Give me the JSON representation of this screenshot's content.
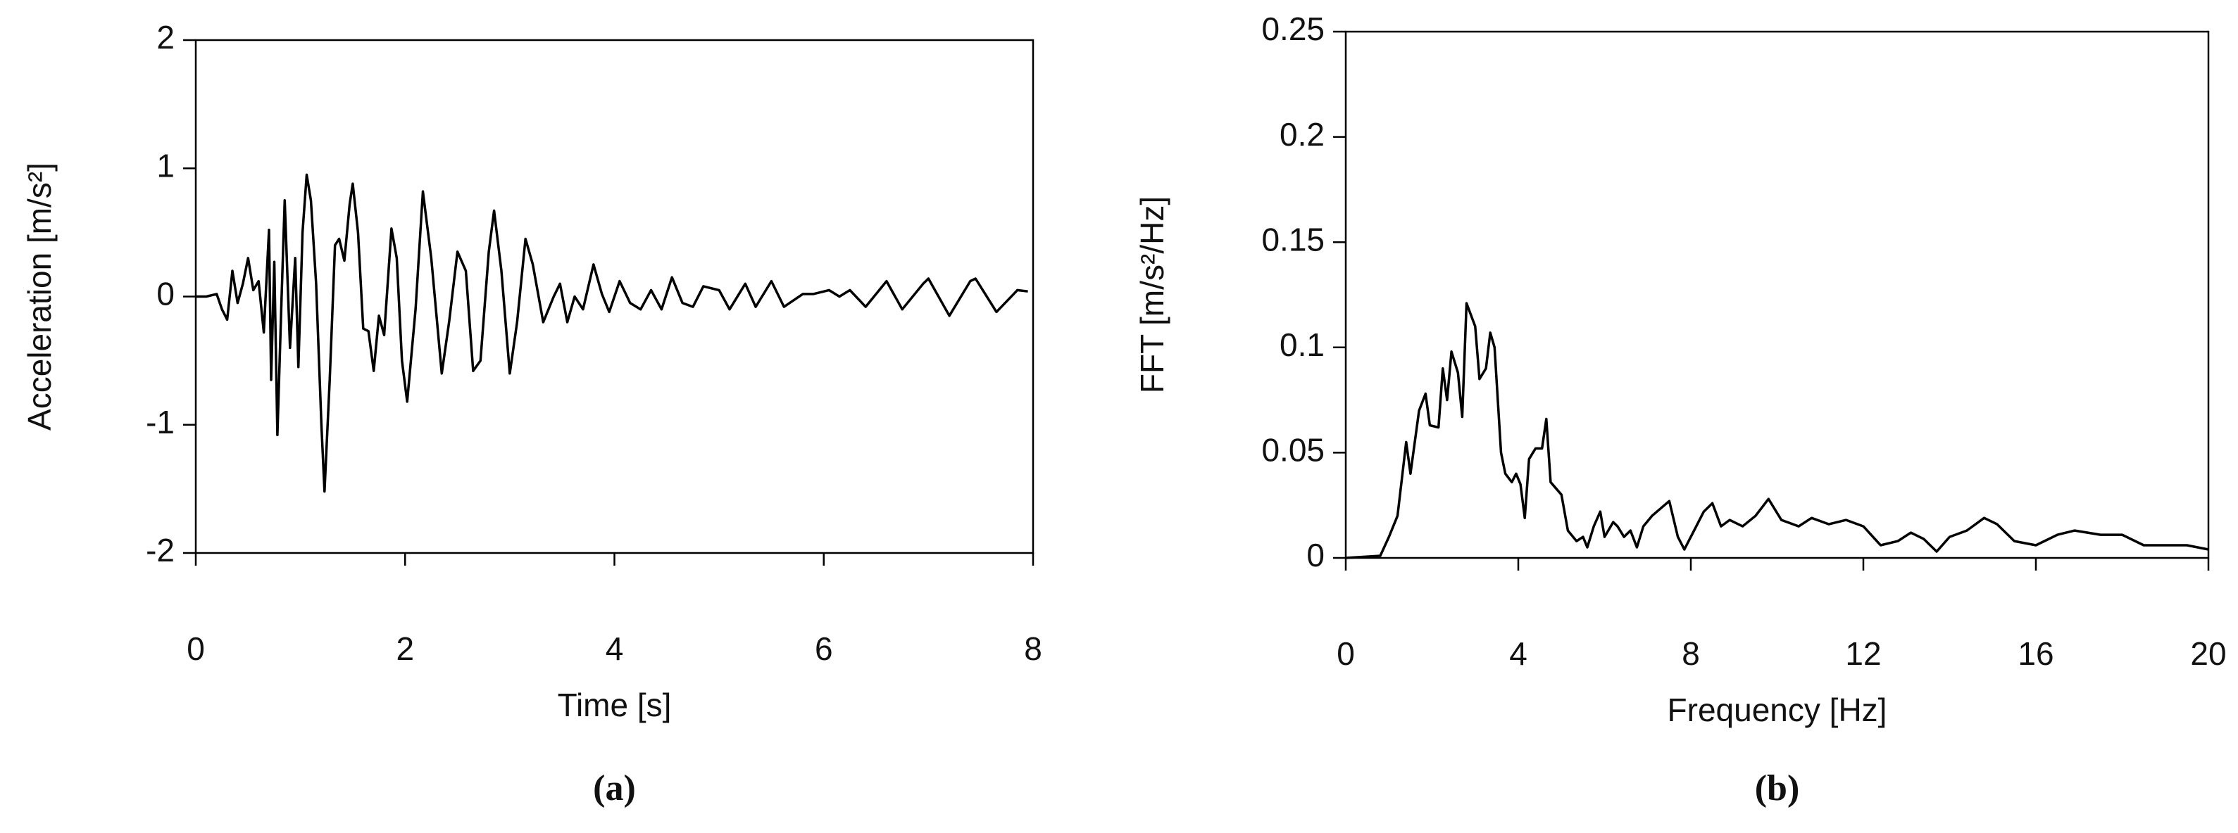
{
  "chart_data": [
    {
      "type": "line",
      "caption": "(a)",
      "xlabel": "Time [s]",
      "ylabel": "Acceleration [m/s²]",
      "color": "#000000",
      "xlim": [
        0,
        8
      ],
      "ylim": [
        -2,
        2
      ],
      "xticks": [
        0,
        2,
        4,
        6,
        8
      ],
      "yticks": [
        -2,
        -1,
        0,
        1,
        2
      ],
      "x": [
        0,
        0.1,
        0.2,
        0.25,
        0.3,
        0.35,
        0.4,
        0.45,
        0.5,
        0.55,
        0.6,
        0.65,
        0.7,
        0.72,
        0.75,
        0.78,
        0.82,
        0.85,
        0.9,
        0.95,
        0.98,
        1.02,
        1.06,
        1.1,
        1.15,
        1.2,
        1.23,
        1.28,
        1.33,
        1.37,
        1.42,
        1.47,
        1.5,
        1.55,
        1.6,
        1.65,
        1.7,
        1.75,
        1.8,
        1.87,
        1.92,
        1.97,
        2.02,
        2.1,
        2.17,
        2.25,
        2.35,
        2.42,
        2.5,
        2.58,
        2.65,
        2.72,
        2.8,
        2.85,
        2.92,
        3.0,
        3.07,
        3.15,
        3.22,
        3.32,
        3.42,
        3.48,
        3.55,
        3.62,
        3.7,
        3.8,
        3.88,
        3.95,
        4.05,
        4.15,
        4.25,
        4.35,
        4.45,
        4.55,
        4.65,
        4.75,
        4.85,
        5.0,
        5.1,
        5.25,
        5.35,
        5.5,
        5.62,
        5.8,
        5.9,
        6.05,
        6.15,
        6.25,
        6.4,
        6.6,
        6.75,
        6.95,
        7.0,
        7.2,
        7.4,
        7.45,
        7.65,
        7.85,
        7.95
      ],
      "values": [
        0,
        0,
        0.02,
        -0.1,
        -0.18,
        0.2,
        -0.05,
        0.1,
        0.3,
        0.05,
        0.12,
        -0.28,
        0.52,
        -0.65,
        0.27,
        -1.08,
        0,
        0.75,
        -0.4,
        0.3,
        -0.55,
        0.5,
        0.95,
        0.75,
        0.1,
        -1.0,
        -1.52,
        -0.65,
        0.4,
        0.45,
        0.28,
        0.72,
        0.88,
        0.5,
        -0.25,
        -0.27,
        -0.58,
        -0.15,
        -0.3,
        0.53,
        0.3,
        -0.5,
        -0.82,
        -0.1,
        0.82,
        0.3,
        -0.6,
        -0.2,
        0.35,
        0.2,
        -0.58,
        -0.5,
        0.35,
        0.67,
        0.2,
        -0.6,
        -0.2,
        0.45,
        0.25,
        -0.2,
        0,
        0.1,
        -0.2,
        0,
        -0.1,
        0.25,
        0.02,
        -0.12,
        0.12,
        -0.05,
        -0.1,
        0.05,
        -0.1,
        0.15,
        -0.05,
        -0.08,
        0.08,
        0.05,
        -0.1,
        0.1,
        -0.08,
        0.12,
        -0.08,
        0.02,
        0.02,
        0.05,
        0,
        0.05,
        -0.08,
        0.12,
        -0.1,
        0.1,
        0.14,
        -0.15,
        0.12,
        0.14,
        -0.12,
        0.05,
        0.04
      ]
    },
    {
      "type": "line",
      "caption": "(b)",
      "xlabel": "Frequency [Hz]",
      "ylabel": "FFT [m/s²/Hz]",
      "color": "#000000",
      "xlim": [
        0,
        20
      ],
      "ylim": [
        0,
        0.25
      ],
      "xticks": [
        0,
        4,
        8,
        12,
        16,
        20
      ],
      "yticks": [
        0,
        0.05,
        0.1,
        0.15,
        0.2,
        0.25
      ],
      "x": [
        0,
        0.8,
        1.0,
        1.2,
        1.4,
        1.5,
        1.7,
        1.85,
        1.95,
        2.15,
        2.25,
        2.35,
        2.45,
        2.6,
        2.7,
        2.8,
        3.0,
        3.1,
        3.25,
        3.35,
        3.45,
        3.6,
        3.7,
        3.85,
        3.95,
        4.05,
        4.15,
        4.25,
        4.4,
        4.55,
        4.65,
        4.75,
        5.0,
        5.15,
        5.35,
        5.5,
        5.6,
        5.75,
        5.9,
        6.0,
        6.2,
        6.3,
        6.45,
        6.6,
        6.75,
        6.9,
        7.1,
        7.5,
        7.7,
        7.85,
        8.0,
        8.3,
        8.5,
        8.7,
        8.9,
        9.2,
        9.5,
        9.8,
        10.1,
        10.5,
        10.8,
        11.2,
        11.6,
        12.0,
        12.4,
        12.8,
        13.1,
        13.4,
        13.7,
        14.0,
        14.4,
        14.8,
        15.1,
        15.5,
        16.0,
        16.5,
        16.9,
        17.5,
        18.0,
        18.5,
        19.0,
        19.5,
        20.0
      ],
      "values": [
        0,
        0.001,
        0.01,
        0.02,
        0.055,
        0.04,
        0.07,
        0.078,
        0.063,
        0.062,
        0.09,
        0.075,
        0.098,
        0.088,
        0.067,
        0.121,
        0.11,
        0.085,
        0.09,
        0.107,
        0.1,
        0.05,
        0.04,
        0.036,
        0.04,
        0.035,
        0.019,
        0.047,
        0.052,
        0.052,
        0.066,
        0.036,
        0.03,
        0.013,
        0.008,
        0.01,
        0.005,
        0.015,
        0.022,
        0.01,
        0.017,
        0.015,
        0.01,
        0.013,
        0.005,
        0.015,
        0.02,
        0.027,
        0.01,
        0.004,
        0.01,
        0.022,
        0.026,
        0.015,
        0.018,
        0.015,
        0.02,
        0.028,
        0.018,
        0.015,
        0.019,
        0.016,
        0.018,
        0.015,
        0.006,
        0.008,
        0.012,
        0.009,
        0.003,
        0.01,
        0.013,
        0.019,
        0.016,
        0.008,
        0.006,
        0.011,
        0.013,
        0.011,
        0.011,
        0.006,
        0.006,
        0.006,
        0.004
      ]
    }
  ]
}
